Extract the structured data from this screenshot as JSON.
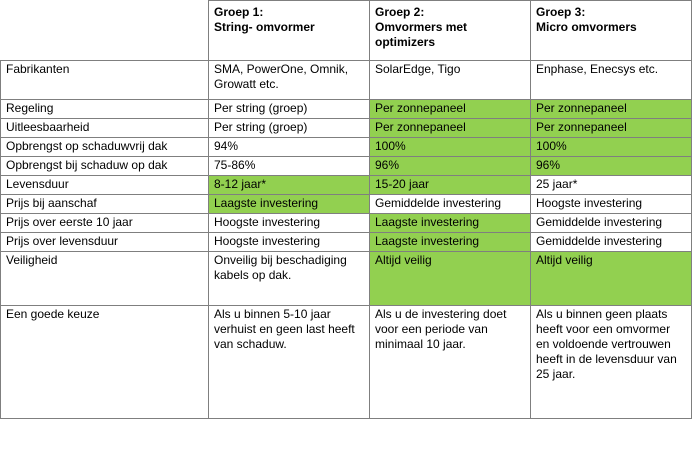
{
  "headers": [
    "",
    "Groep 1:\nString- omvormer",
    "Groep 2:\nOmvormers met optimizers",
    "Groep 3:\nMicro omvormers"
  ],
  "rows": [
    {
      "label": "Fabrikanten",
      "cells": [
        "SMA, PowerOne, Omnik, Growatt etc.",
        "SolarEdge, Tigo",
        "Enphase, Enecsys etc."
      ],
      "highlight": [
        false,
        false,
        false
      ]
    },
    {
      "label": "Regeling",
      "cells": [
        "Per string (groep)",
        "Per zonnepaneel",
        "Per zonnepaneel"
      ],
      "highlight": [
        false,
        true,
        true
      ]
    },
    {
      "label": "Uitleesbaarheid",
      "cells": [
        "Per string (groep)",
        "Per zonnepaneel",
        "Per zonnepaneel"
      ],
      "highlight": [
        false,
        true,
        true
      ]
    },
    {
      "label": "Opbrengst op schaduwvrij dak",
      "cells": [
        "94%",
        "100%",
        "100%"
      ],
      "highlight": [
        false,
        true,
        true
      ]
    },
    {
      "label": "Opbrengst bij schaduw op dak",
      "cells": [
        "75-86%",
        "96%",
        "96%"
      ],
      "highlight": [
        false,
        true,
        true
      ]
    },
    {
      "label": "Levensduur",
      "cells": [
        "8-12 jaar*",
        "15-20 jaar",
        "25 jaar*"
      ],
      "highlight": [
        true,
        true,
        false
      ]
    },
    {
      "label": "Prijs bij aanschaf",
      "cells": [
        "Laagste investering",
        "Gemiddelde investering",
        "Hoogste investering"
      ],
      "highlight": [
        true,
        false,
        false
      ]
    },
    {
      "label": "Prijs over eerste 10 jaar",
      "cells": [
        "Hoogste investering",
        "Laagste investering",
        "Gemiddelde investering"
      ],
      "highlight": [
        false,
        true,
        false
      ]
    },
    {
      "label": "Prijs over levensduur",
      "cells": [
        "Hoogste investering",
        "Laagste investering",
        "Gemiddelde investering"
      ],
      "highlight": [
        false,
        true,
        false
      ]
    },
    {
      "label": "Veiligheid",
      "cells": [
        "Onveilig bij beschadiging kabels op dak.",
        "Altijd veilig",
        "Altijd veilig"
      ],
      "highlight": [
        false,
        true,
        true
      ]
    },
    {
      "label": "Een goede keuze",
      "cells": [
        "Als u binnen 5-10 jaar verhuist en geen last heeft van schaduw.",
        "Als u de investering doet voor een periode van minimaal 10  jaar.",
        "Als u binnen geen plaats heeft voor een omvormer en voldoende vertrouwen heeft in de levensduur van 25 jaar."
      ],
      "highlight": [
        false,
        false,
        false
      ]
    }
  ],
  "colors": {
    "highlight": "#92d050",
    "border": "#7f7f7f"
  }
}
